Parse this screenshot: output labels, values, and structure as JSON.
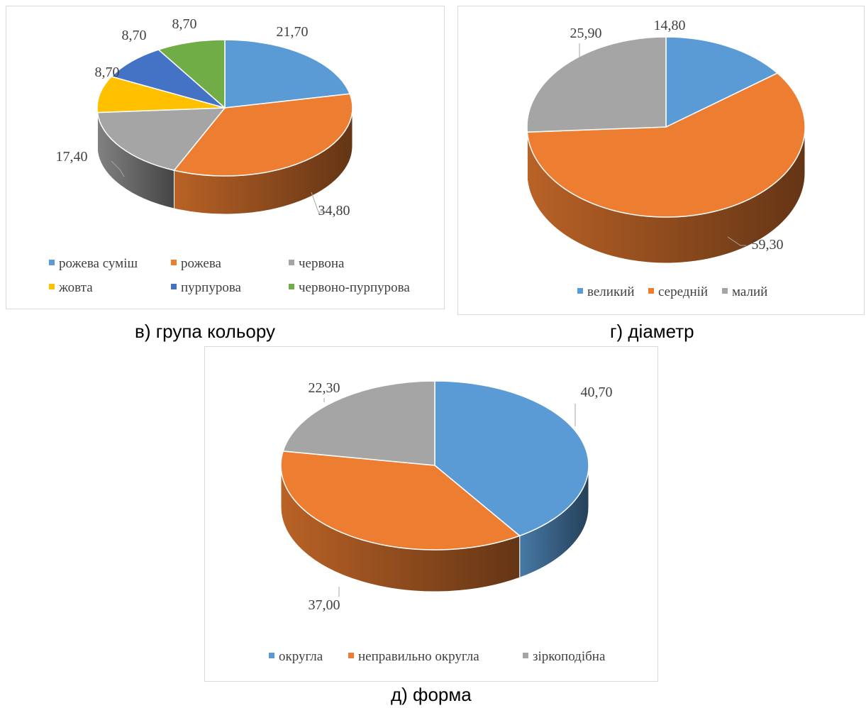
{
  "chart_data": [
    {
      "type": "pie",
      "title": "",
      "categories": [
        "рожева суміш",
        "рожева",
        "червона",
        "жовта",
        "пурпурова",
        "червоно-пурпурова"
      ],
      "values": [
        21.7,
        34.8,
        17.4,
        8.7,
        8.7,
        8.7
      ],
      "labels": [
        "21,70",
        "34,80",
        "17,40",
        "8,70",
        "8,70",
        "8,70"
      ],
      "colors": [
        "#5b9bd5",
        "#ed7d31",
        "#a5a5a5",
        "#ffc000",
        "#4472c4",
        "#70ad47"
      ],
      "style": "3d",
      "legend": "bottom",
      "caption": "в) група кольору"
    },
    {
      "type": "pie",
      "title": "",
      "categories": [
        "великий",
        "середній",
        "малий"
      ],
      "values": [
        14.8,
        59.3,
        25.9
      ],
      "labels": [
        "14,80",
        "59,30",
        "25,90"
      ],
      "colors": [
        "#5b9bd5",
        "#ed7d31",
        "#a5a5a5"
      ],
      "style": "3d",
      "legend": "bottom",
      "caption": "г) діаметр"
    },
    {
      "type": "pie",
      "title": "",
      "categories": [
        "округла",
        "неправильно округла",
        "зіркоподібна"
      ],
      "values": [
        40.7,
        37.0,
        22.3
      ],
      "labels": [
        "40,70",
        "37,00",
        "22,30"
      ],
      "colors": [
        "#5b9bd5",
        "#ed7d31",
        "#a5a5a5"
      ],
      "style": "3d",
      "legend": "bottom",
      "caption": "д) форма"
    }
  ]
}
